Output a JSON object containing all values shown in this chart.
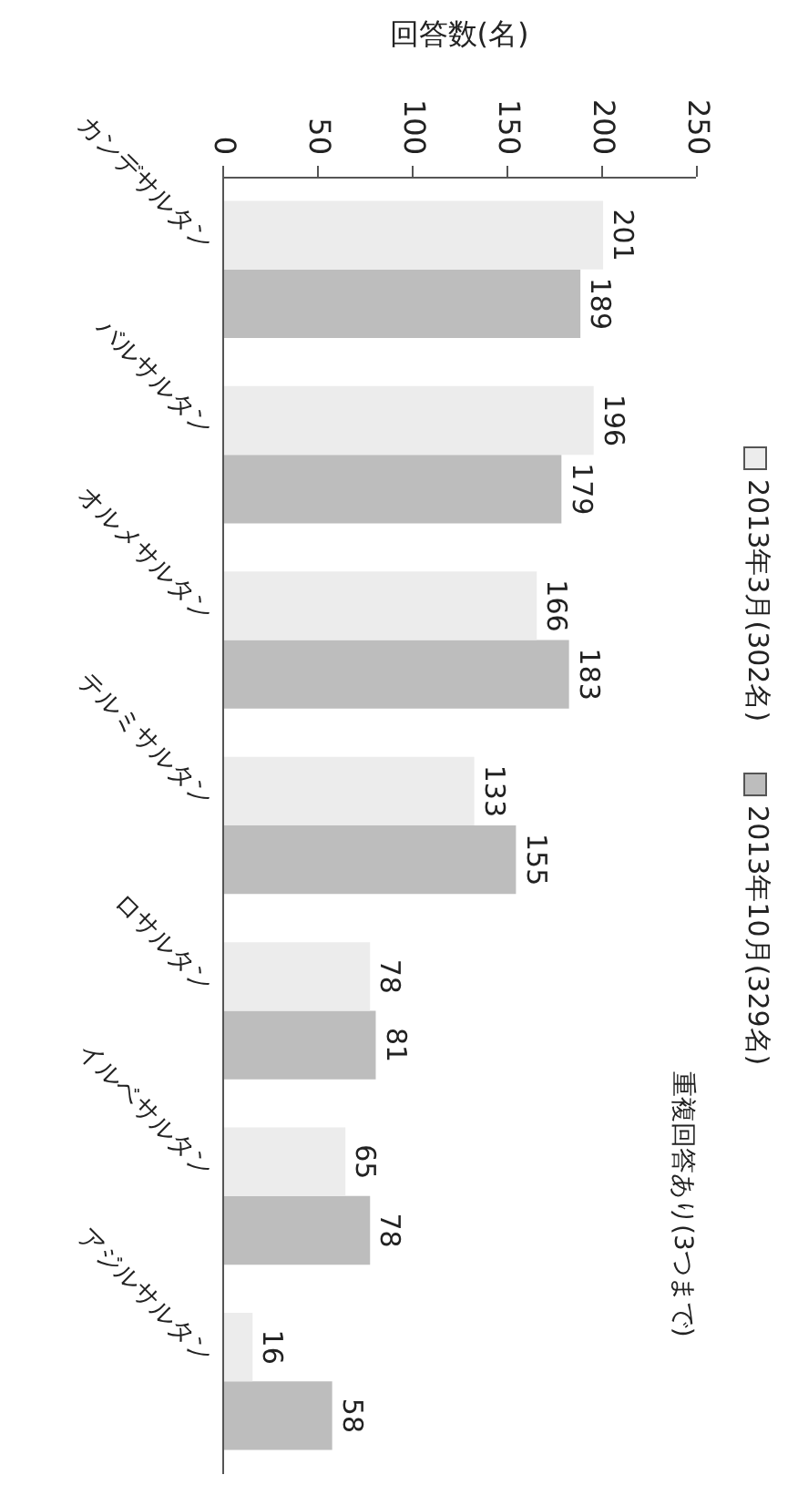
{
  "chart_data": {
    "type": "bar",
    "orientation": "horizontal",
    "xlabel": "回答数(名)",
    "categories": [
      "カンデサルタン",
      "バルサルタン",
      "オルメサルタン",
      "テルミサルタン",
      "ロサルタン",
      "イルベサルタン",
      "アジルサルタン"
    ],
    "series": [
      {
        "name": "2013年3月(302名)",
        "color": "#ececec",
        "values": [
          201,
          196,
          166,
          133,
          78,
          65,
          16
        ]
      },
      {
        "name": "2013年10月(329名)",
        "color": "#bdbdbd",
        "values": [
          189,
          179,
          183,
          155,
          81,
          78,
          58
        ]
      }
    ],
    "xlim": [
      0,
      250
    ],
    "xticks": [
      0,
      50,
      100,
      150,
      200,
      250
    ],
    "legend": "right",
    "data_labels": true,
    "annotations": [
      "重複回答あり(3つまで)"
    ]
  }
}
